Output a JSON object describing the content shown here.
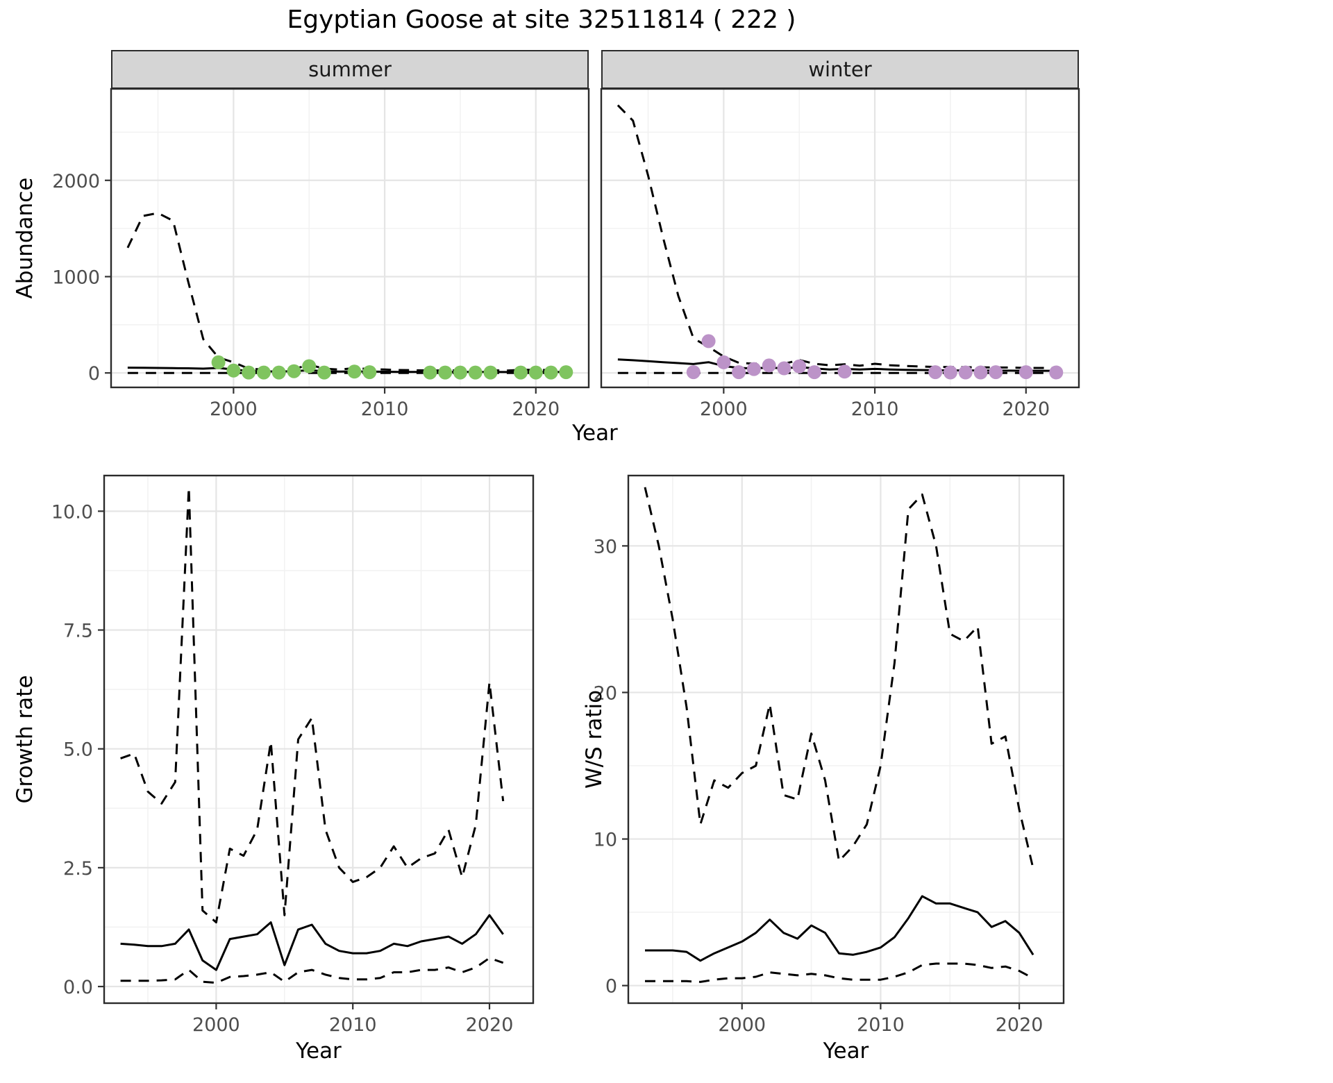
{
  "title": "Egyptian Goose at site 32511814 ( 222 )",
  "colors": {
    "summer_point": "#7fc45f",
    "winter_point": "#bc93c8",
    "line": "#000000",
    "grid_major": "#e5e5e5",
    "grid_minor": "#f2f2f2",
    "strip_bg": "#d5d5d5",
    "panel_border": "#2b2b2b",
    "axis_text": "#4d4d4d"
  },
  "chart_data": [
    {
      "type": "line",
      "name": "abundance-summer",
      "facet": "summer",
      "xlabel": "Year",
      "ylabel": "Abundance",
      "xlim": [
        1991.9,
        2023.5
      ],
      "ylim": [
        -150,
        2950
      ],
      "xticks": [
        2000,
        2010,
        2020
      ],
      "xtick_labels": [
        "2000",
        "2010",
        "2020"
      ],
      "yticks": [
        0,
        1000,
        2000
      ],
      "ytick_labels": [
        "0",
        "1000",
        "2000"
      ],
      "x": [
        1993,
        1994,
        1995,
        1996,
        1997,
        1998,
        1999,
        2000,
        2001,
        2002,
        2003,
        2004,
        2005,
        2006,
        2007,
        2008,
        2009,
        2010,
        2011,
        2012,
        2013,
        2014,
        2015,
        2016,
        2017,
        2018,
        2019,
        2020,
        2021,
        2022
      ],
      "series": [
        {
          "name": "upper-ci",
          "style": "dashed",
          "values": [
            1300,
            1630,
            1660,
            1580,
            950,
            350,
            160,
            110,
            45,
            35,
            35,
            40,
            85,
            45,
            35,
            50,
            40,
            35,
            30,
            28,
            26,
            25,
            28,
            28,
            28,
            24,
            32,
            32,
            30,
            28
          ]
        },
        {
          "name": "estimate",
          "style": "solid",
          "values": [
            55,
            54,
            52,
            50,
            48,
            45,
            52,
            35,
            20,
            16,
            15,
            17,
            28,
            18,
            14,
            16,
            14,
            12,
            11,
            10,
            10,
            9,
            10,
            10,
            10,
            9,
            10,
            10,
            10,
            9
          ]
        },
        {
          "name": "lower-ci",
          "style": "dashed",
          "values": [
            0,
            0,
            0,
            0,
            0,
            0,
            0,
            0,
            0,
            0,
            0,
            0,
            0,
            0,
            0,
            0,
            0,
            0,
            0,
            0,
            0,
            0,
            0,
            0,
            0,
            0,
            0,
            0,
            0,
            0
          ]
        }
      ],
      "points": {
        "name": "observed-counts",
        "color_key": "summer_point",
        "x": [
          1999,
          2000,
          2001,
          2002,
          2003,
          2004,
          2005,
          2006,
          2008,
          2009,
          2013,
          2014,
          2015,
          2016,
          2017,
          2019,
          2020,
          2021,
          2022
        ],
        "y": [
          110,
          25,
          4,
          4,
          4,
          18,
          70,
          4,
          14,
          8,
          4,
          4,
          4,
          4,
          4,
          4,
          4,
          4,
          8
        ]
      }
    },
    {
      "type": "line",
      "name": "abundance-winter",
      "facet": "winter",
      "xlabel": "Year",
      "ylabel": "Abundance",
      "xlim": [
        1991.9,
        2023.5
      ],
      "ylim": [
        -150,
        2950
      ],
      "xticks": [
        2000,
        2010,
        2020
      ],
      "xtick_labels": [
        "2000",
        "2010",
        "2020"
      ],
      "yticks": [
        0,
        1000,
        2000
      ],
      "ytick_labels": [
        "0",
        "1000",
        "2000"
      ],
      "x": [
        1993,
        1994,
        1995,
        1996,
        1997,
        1998,
        1999,
        2000,
        2001,
        2002,
        2003,
        2004,
        2005,
        2006,
        2007,
        2008,
        2009,
        2010,
        2011,
        2012,
        2013,
        2014,
        2015,
        2016,
        2017,
        2018,
        2019,
        2020,
        2021,
        2022
      ],
      "series": [
        {
          "name": "upper-ci",
          "style": "dashed",
          "values": [
            2780,
            2620,
            2050,
            1400,
            800,
            360,
            270,
            170,
            105,
            95,
            115,
            95,
            135,
            95,
            80,
            90,
            75,
            95,
            80,
            72,
            68,
            62,
            62,
            60,
            58,
            56,
            56,
            52,
            52,
            50
          ]
        },
        {
          "name": "estimate",
          "style": "solid",
          "values": [
            140,
            132,
            122,
            112,
            102,
            92,
            112,
            72,
            52,
            46,
            56,
            46,
            62,
            46,
            36,
            42,
            36,
            42,
            36,
            32,
            30,
            28,
            26,
            26,
            25,
            24,
            24,
            22,
            22,
            22
          ]
        },
        {
          "name": "lower-ci",
          "style": "dashed",
          "values": [
            0,
            0,
            0,
            0,
            0,
            0,
            0,
            0,
            0,
            0,
            0,
            0,
            0,
            0,
            0,
            0,
            0,
            0,
            0,
            0,
            0,
            0,
            0,
            0,
            0,
            0,
            0,
            0,
            0,
            0
          ]
        }
      ],
      "points": {
        "name": "observed-counts",
        "color_key": "winter_point",
        "x": [
          1998,
          1999,
          2000,
          2001,
          2002,
          2003,
          2004,
          2005,
          2006,
          2008,
          2014,
          2015,
          2016,
          2017,
          2018,
          2020,
          2022
        ],
        "y": [
          8,
          330,
          110,
          8,
          40,
          78,
          48,
          68,
          8,
          14,
          8,
          5,
          5,
          5,
          8,
          8,
          5
        ]
      }
    },
    {
      "type": "line",
      "name": "growth-rate",
      "xlabel": "Year",
      "ylabel": "Growth rate",
      "xlim": [
        1991.8,
        2023.2
      ],
      "ylim": [
        -0.35,
        10.75
      ],
      "xticks": [
        2000,
        2010,
        2020
      ],
      "xtick_labels": [
        "2000",
        "2010",
        "2020"
      ],
      "yticks": [
        0,
        2.5,
        5,
        7.5,
        10
      ],
      "ytick_labels": [
        "0.0",
        "2.5",
        "5.0",
        "7.5",
        "10.0"
      ],
      "x": [
        1993,
        1994,
        1995,
        1996,
        1997,
        1998,
        1999,
        2000,
        2001,
        2002,
        2003,
        2004,
        2005,
        2006,
        2007,
        2008,
        2009,
        2010,
        2011,
        2012,
        2013,
        2014,
        2015,
        2016,
        2017,
        2018,
        2019,
        2020,
        2021
      ],
      "series": [
        {
          "name": "upper-ci",
          "style": "dashed",
          "values": [
            4.8,
            4.9,
            4.1,
            3.85,
            4.3,
            10.5,
            1.6,
            1.35,
            2.9,
            2.75,
            3.3,
            5.15,
            1.5,
            5.2,
            5.65,
            3.3,
            2.5,
            2.2,
            2.3,
            2.5,
            2.95,
            2.5,
            2.7,
            2.8,
            3.3,
            2.3,
            3.4,
            6.4,
            3.9
          ]
        },
        {
          "name": "estimate",
          "style": "solid",
          "values": [
            0.9,
            0.88,
            0.85,
            0.85,
            0.9,
            1.2,
            0.55,
            0.35,
            1.0,
            1.05,
            1.1,
            1.35,
            0.45,
            1.2,
            1.3,
            0.9,
            0.75,
            0.7,
            0.7,
            0.75,
            0.9,
            0.85,
            0.95,
            1.0,
            1.05,
            0.9,
            1.1,
            1.5,
            1.1
          ]
        },
        {
          "name": "lower-ci",
          "style": "dashed",
          "values": [
            0.12,
            0.12,
            0.12,
            0.13,
            0.15,
            0.35,
            0.1,
            0.08,
            0.2,
            0.22,
            0.25,
            0.3,
            0.1,
            0.3,
            0.35,
            0.25,
            0.18,
            0.15,
            0.15,
            0.18,
            0.3,
            0.3,
            0.35,
            0.35,
            0.4,
            0.3,
            0.4,
            0.6,
            0.5
          ]
        }
      ]
    },
    {
      "type": "line",
      "name": "ws-ratio",
      "xlabel": "Year",
      "ylabel": "W/S ratio",
      "xlim": [
        1991.8,
        2023.2
      ],
      "ylim": [
        -1.2,
        34.8
      ],
      "xticks": [
        2000,
        2010,
        2020
      ],
      "xtick_labels": [
        "2000",
        "2010",
        "2020"
      ],
      "yticks": [
        0,
        10,
        20,
        30
      ],
      "ytick_labels": [
        "0",
        "10",
        "20",
        "30"
      ],
      "x": [
        1993,
        1994,
        1995,
        1996,
        1997,
        1998,
        1999,
        2000,
        2001,
        2002,
        2003,
        2004,
        2005,
        2006,
        2007,
        2008,
        2009,
        2010,
        2011,
        2012,
        2013,
        2014,
        2015,
        2016,
        2017,
        2018,
        2019,
        2020,
        2021
      ],
      "series": [
        {
          "name": "upper-ci",
          "style": "dashed",
          "values": [
            34,
            30,
            25,
            19,
            11,
            14,
            13.5,
            14.5,
            15,
            19.2,
            13,
            12.7,
            17.2,
            14,
            8.5,
            9.5,
            11,
            15,
            22,
            32.5,
            33.5,
            30,
            24,
            23.5,
            24.5,
            16.5,
            17,
            12,
            8
          ]
        },
        {
          "name": "estimate",
          "style": "solid",
          "values": [
            2.4,
            2.4,
            2.4,
            2.3,
            1.7,
            2.2,
            2.6,
            3.0,
            3.6,
            4.5,
            3.6,
            3.2,
            4.1,
            3.6,
            2.2,
            2.1,
            2.3,
            2.6,
            3.3,
            4.6,
            6.1,
            5.6,
            5.6,
            5.3,
            5.0,
            4.0,
            4.4,
            3.6,
            2.1
          ]
        },
        {
          "name": "lower-ci",
          "style": "dashed",
          "values": [
            0.3,
            0.3,
            0.3,
            0.3,
            0.25,
            0.4,
            0.5,
            0.5,
            0.6,
            0.9,
            0.8,
            0.7,
            0.8,
            0.7,
            0.5,
            0.4,
            0.4,
            0.4,
            0.6,
            0.9,
            1.4,
            1.5,
            1.5,
            1.5,
            1.4,
            1.2,
            1.3,
            1.0,
            0.5
          ]
        }
      ]
    }
  ]
}
